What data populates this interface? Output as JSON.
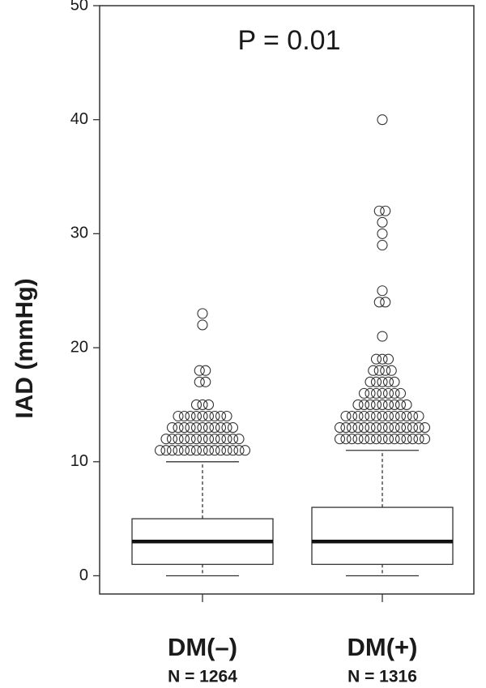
{
  "chart_data": {
    "type": "box",
    "y_label": "IAD (mmHg)",
    "annotation": "P = 0.01",
    "categories": [
      "DM(–)",
      "DM(+)"
    ],
    "n_labels": [
      "N = 1264",
      "N = 1316"
    ],
    "ylim": [
      -1.6,
      50
    ],
    "yticks": [
      0,
      10,
      20,
      30,
      40,
      50
    ],
    "boxes": [
      {
        "whisker_low": 0,
        "q1": 1,
        "median": 3,
        "q3": 5,
        "whisker_high": 10,
        "outliers": [
          {
            "value": 11,
            "count": 15
          },
          {
            "value": 12,
            "count": 13
          },
          {
            "value": 13,
            "count": 11
          },
          {
            "value": 14,
            "count": 9
          },
          {
            "value": 15,
            "count": 3
          },
          {
            "value": 17,
            "count": 2
          },
          {
            "value": 18,
            "count": 2
          },
          {
            "value": 22,
            "count": 1
          },
          {
            "value": 23,
            "count": 1
          }
        ]
      },
      {
        "whisker_low": 0,
        "q1": 1,
        "median": 3,
        "q3": 6,
        "whisker_high": 11,
        "outliers": [
          {
            "value": 12,
            "count": 15
          },
          {
            "value": 13,
            "count": 15
          },
          {
            "value": 14,
            "count": 13
          },
          {
            "value": 15,
            "count": 9
          },
          {
            "value": 16,
            "count": 7
          },
          {
            "value": 17,
            "count": 5
          },
          {
            "value": 18,
            "count": 4
          },
          {
            "value": 19,
            "count": 3
          },
          {
            "value": 21,
            "count": 1
          },
          {
            "value": 24,
            "count": 2
          },
          {
            "value": 25,
            "count": 1
          },
          {
            "value": 29,
            "count": 1
          },
          {
            "value": 30,
            "count": 1
          },
          {
            "value": 31,
            "count": 1
          },
          {
            "value": 32,
            "count": 2
          },
          {
            "value": 40,
            "count": 1
          }
        ]
      }
    ]
  }
}
